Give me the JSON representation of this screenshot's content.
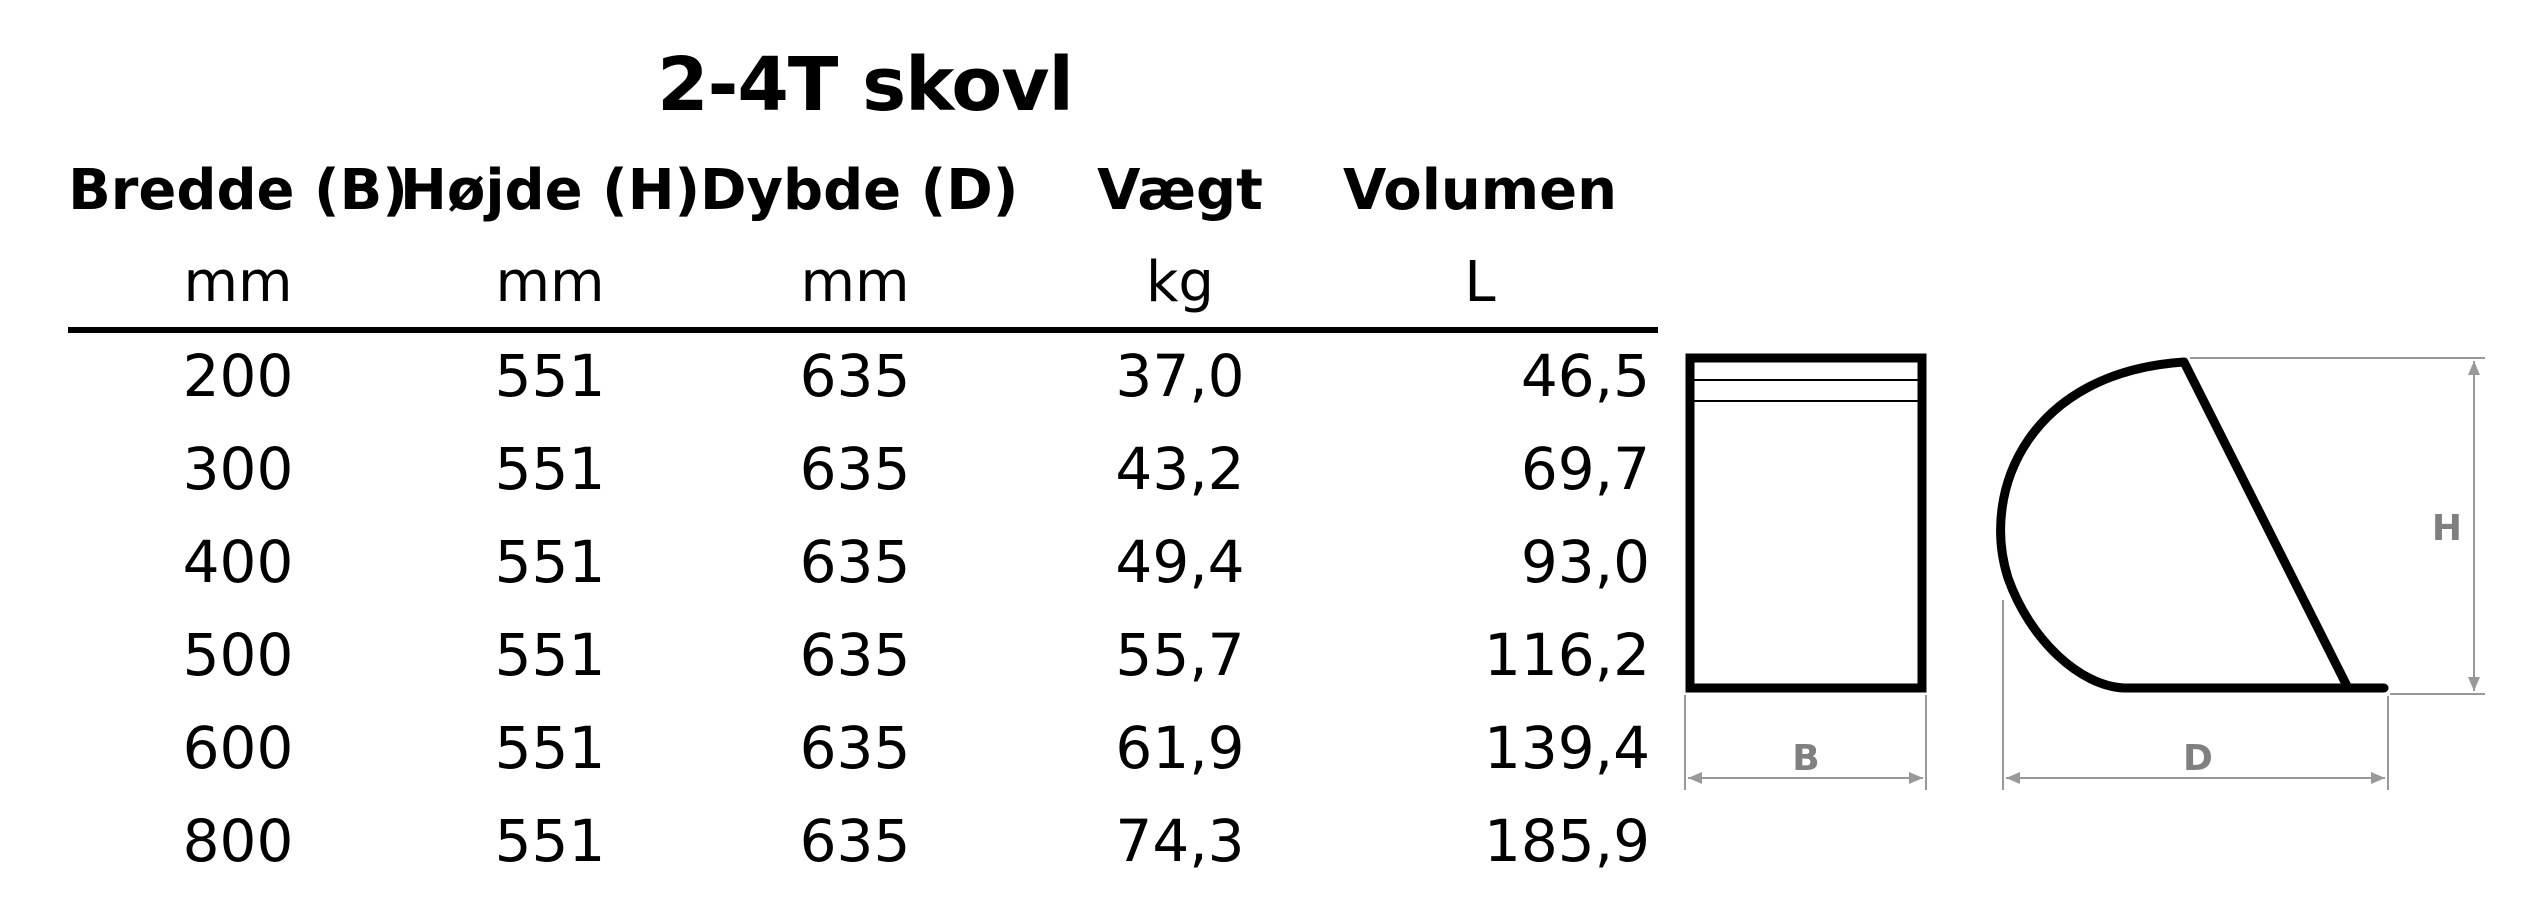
{
  "title": "2-4T skovl",
  "columns": [
    {
      "label": "Bredde (B)",
      "unit": "mm"
    },
    {
      "label": "Højde (H)",
      "unit": "mm"
    },
    {
      "label": "Dybde (D)",
      "unit": "mm"
    },
    {
      "label": "Vægt",
      "unit": "kg"
    },
    {
      "label": "Volumen",
      "unit": "L"
    }
  ],
  "rows": [
    [
      "200",
      "551",
      "635",
      "37,0",
      "46,5"
    ],
    [
      "300",
      "551",
      "635",
      "43,2",
      "69,7"
    ],
    [
      "400",
      "551",
      "635",
      "49,4",
      "93,0"
    ],
    [
      "500",
      "551",
      "635",
      "55,7",
      "116,2"
    ],
    [
      "600",
      "551",
      "635",
      "61,9",
      "139,4"
    ],
    [
      "800",
      "551",
      "635",
      "74,3",
      "185,9"
    ]
  ],
  "diagram": {
    "width_label": "B",
    "height_label": "H",
    "depth_label": "D"
  }
}
